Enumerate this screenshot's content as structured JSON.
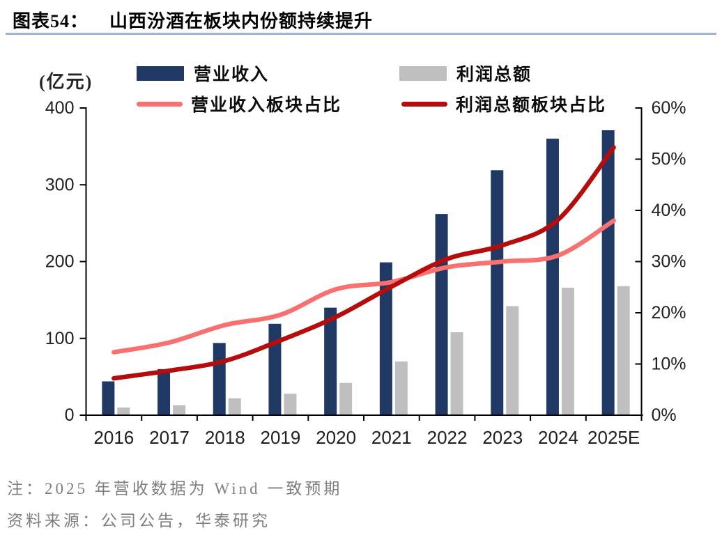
{
  "figure": {
    "label": "图表54：",
    "title": "山西汾酒在板块内份额持续提升"
  },
  "notes": {
    "note": "注：2025 年营收数据为 Wind 一致预期",
    "source": "资料来源：公司公告，华泰研究"
  },
  "colors": {
    "revenue_bar": "#1F3864",
    "profit_bar": "#BFBFBF",
    "revenue_share_line": "#F97070",
    "profit_share_line": "#B50D0D",
    "title_rule": "#9DB4D8",
    "axis": "#000000",
    "tick_text": "#1F1F1F",
    "note_text": "#7F7F7F"
  },
  "chart_data": {
    "type": "combo",
    "title": "山西汾酒在板块内份额持续提升",
    "categories": [
      "2016",
      "2017",
      "2018",
      "2019",
      "2020",
      "2021",
      "2022",
      "2023",
      "2024",
      "2025E"
    ],
    "series": [
      {
        "name": "营业收入",
        "type": "bar",
        "axis": "left",
        "color": "#1F3864",
        "values": [
          44,
          60,
          94,
          119,
          140,
          199,
          262,
          319,
          360,
          371
        ]
      },
      {
        "name": "利润总额",
        "type": "bar",
        "axis": "left",
        "color": "#BFBFBF",
        "values": [
          10,
          13,
          22,
          28,
          42,
          70,
          108,
          142,
          166,
          168
        ]
      },
      {
        "name": "营业收入板块占比",
        "type": "line",
        "axis": "right",
        "color": "#F97070",
        "values": [
          12.3,
          14.2,
          17.6,
          19.6,
          24.6,
          26.0,
          28.9,
          30.0,
          31.2,
          38.0
        ]
      },
      {
        "name": "利润总额板块占比",
        "type": "line",
        "axis": "right",
        "color": "#B50D0D",
        "values": [
          7.2,
          8.7,
          10.6,
          14.6,
          19.2,
          25.1,
          30.5,
          33.2,
          38.2,
          52.3
        ]
      }
    ],
    "left_axis": {
      "label": "(亿元)",
      "min": 0,
      "max": 400,
      "step": 100,
      "suffix": ""
    },
    "right_axis": {
      "label": "",
      "min": 0,
      "max": 60,
      "step": 10,
      "suffix": "%"
    },
    "xlabel": "",
    "grid": false,
    "legend_position": "top"
  }
}
